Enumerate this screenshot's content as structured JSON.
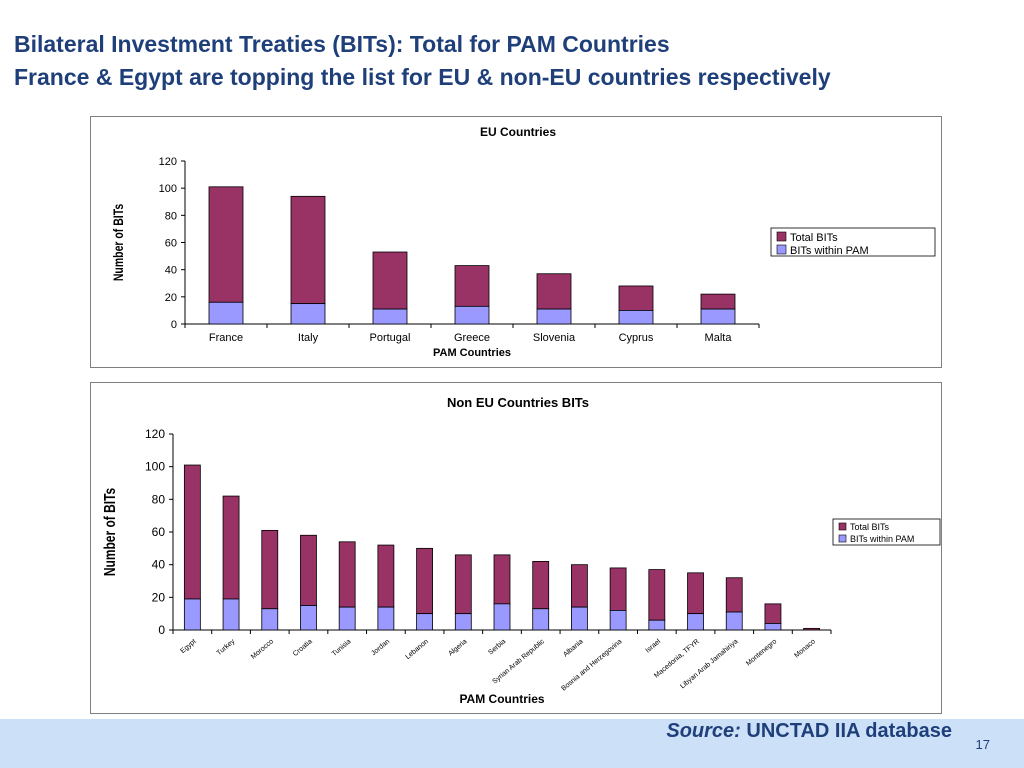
{
  "slide": {
    "title_line1": "Bilateral Investment Treaties (BITs): Total for PAM Countries",
    "title_line2": "France & Egypt are topping the list for EU & non-EU countries respectively",
    "source_label": "Source:",
    "source_text": "UNCTAD IIA database",
    "page_number": "17"
  },
  "colors": {
    "total": "#993366",
    "within": "#9999ff",
    "title": "#1f3f7a",
    "footer": "#cce0f8"
  },
  "chart_data": [
    {
      "type": "bar",
      "stacked": true,
      "title": "EU Countries",
      "xlabel": "PAM Countries",
      "ylabel": "Number of BITs",
      "ylim": [
        0,
        120
      ],
      "yticks": [
        0,
        20,
        40,
        60,
        80,
        100,
        120
      ],
      "categories": [
        "France",
        "Italy",
        "Portugal",
        "Greece",
        "Slovenia",
        "Cyprus",
        "Malta"
      ],
      "series": [
        {
          "name": "BITs within PAM",
          "values": [
            16,
            15,
            11,
            13,
            11,
            10,
            11
          ]
        },
        {
          "name": "Total BITs",
          "values": [
            101,
            94,
            53,
            43,
            37,
            28,
            22
          ]
        }
      ],
      "legend": [
        "Total BITs",
        "BITs within PAM"
      ],
      "legend_position": "right",
      "grid": false
    },
    {
      "type": "bar",
      "stacked": true,
      "title": "Non EU Countries BITs",
      "xlabel": "PAM Countries",
      "ylabel": "Number of BITs",
      "ylim": [
        0,
        120
      ],
      "yticks": [
        0,
        20,
        40,
        60,
        80,
        100,
        120
      ],
      "categories": [
        "Egypt",
        "Turkey",
        "Morocco",
        "Croatia",
        "Tunisia",
        "Jordan",
        "Lebanon",
        "Algeria",
        "Serbia",
        "Syrian Arab Republic",
        "Albania",
        "Bosnia and Herzegovina",
        "Israel",
        "Macedonia, TFYR",
        "Libyan Arab Jamahiriya",
        "Montenegro",
        "Monaco"
      ],
      "series": [
        {
          "name": "BITs within PAM",
          "values": [
            19,
            19,
            13,
            15,
            14,
            14,
            10,
            10,
            16,
            13,
            14,
            12,
            6,
            10,
            11,
            4,
            0
          ]
        },
        {
          "name": "Total BITs",
          "values": [
            101,
            82,
            61,
            58,
            54,
            52,
            50,
            46,
            46,
            42,
            40,
            38,
            37,
            35,
            32,
            16,
            1
          ]
        }
      ],
      "legend": [
        "Total BITs",
        "BITs within PAM"
      ],
      "legend_position": "right",
      "grid": false
    }
  ]
}
